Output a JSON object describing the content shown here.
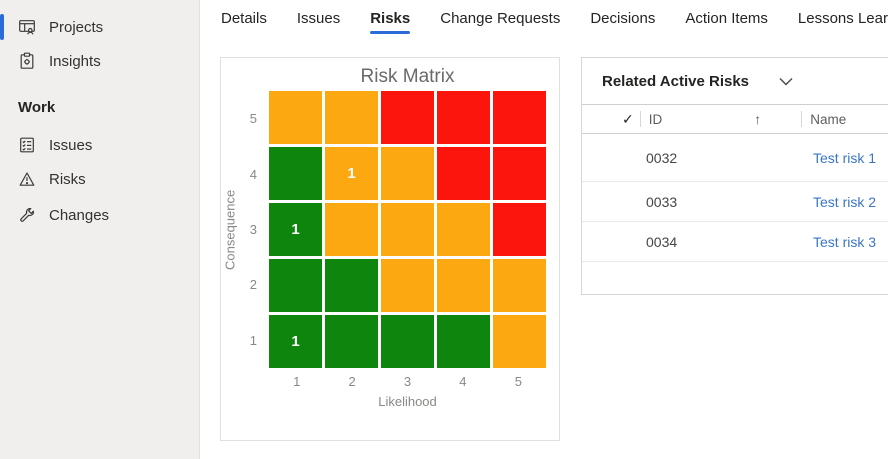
{
  "colors": {
    "accent": "#2B6BD8",
    "link": "#3A76C4",
    "green": "#0E860E",
    "orange": "#FCA811",
    "red": "#FB150C"
  },
  "sidebar": {
    "items": [
      {
        "label": "Projects",
        "icon": "projects-icon",
        "selected": true
      },
      {
        "label": "Insights",
        "icon": "insights-icon",
        "selected": false
      }
    ],
    "section_label": "Work",
    "work_items": [
      {
        "label": "Issues",
        "icon": "issues-icon"
      },
      {
        "label": "Risks",
        "icon": "warning-icon"
      },
      {
        "label": "Changes",
        "icon": "wrench-icon"
      }
    ]
  },
  "tabs": {
    "active": "Risks",
    "items": [
      {
        "label": "Details"
      },
      {
        "label": "Issues"
      },
      {
        "label": "Risks"
      },
      {
        "label": "Change Requests"
      },
      {
        "label": "Decisions"
      },
      {
        "label": "Action Items"
      },
      {
        "label": "Lessons Learned"
      }
    ]
  },
  "chart_data": {
    "type": "heatmap",
    "title": "Risk Matrix",
    "xlabel": "Likelihood",
    "ylabel": "Consequence",
    "x_ticks": [
      "1",
      "2",
      "3",
      "4",
      "5"
    ],
    "y_ticks": [
      "5",
      "4",
      "3",
      "2",
      "1"
    ],
    "legend": "none",
    "cell_colors": {
      "green": "#0E860E",
      "orange": "#FCA811",
      "red": "#FB150C"
    },
    "rows": [
      {
        "consequence": 5,
        "cells": [
          {
            "color": "orange"
          },
          {
            "color": "orange"
          },
          {
            "color": "red"
          },
          {
            "color": "red"
          },
          {
            "color": "red"
          }
        ]
      },
      {
        "consequence": 4,
        "cells": [
          {
            "color": "green"
          },
          {
            "color": "orange",
            "value": "1"
          },
          {
            "color": "orange"
          },
          {
            "color": "red"
          },
          {
            "color": "red"
          }
        ]
      },
      {
        "consequence": 3,
        "cells": [
          {
            "color": "green",
            "value": "1"
          },
          {
            "color": "orange"
          },
          {
            "color": "orange"
          },
          {
            "color": "orange"
          },
          {
            "color": "red"
          }
        ]
      },
      {
        "consequence": 2,
        "cells": [
          {
            "color": "green"
          },
          {
            "color": "green"
          },
          {
            "color": "orange"
          },
          {
            "color": "orange"
          },
          {
            "color": "orange"
          }
        ]
      },
      {
        "consequence": 1,
        "cells": [
          {
            "color": "green",
            "value": "1"
          },
          {
            "color": "green"
          },
          {
            "color": "green"
          },
          {
            "color": "green"
          },
          {
            "color": "orange"
          }
        ]
      }
    ]
  },
  "risk_panel": {
    "title": "Related Active Risks",
    "table": {
      "select_all_icon": "✓",
      "sort_icon": "↑",
      "columns": [
        {
          "label": "ID"
        },
        {
          "label": "Name"
        }
      ],
      "rows": [
        {
          "id": "0032",
          "name": "Test risk 1"
        },
        {
          "id": "0033",
          "name": "Test risk 2"
        },
        {
          "id": "0034",
          "name": "Test risk 3"
        }
      ]
    }
  }
}
